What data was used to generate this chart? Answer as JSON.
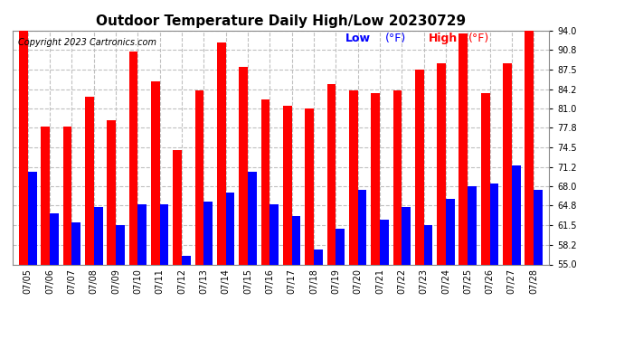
{
  "title": "Outdoor Temperature Daily High/Low 20230729",
  "copyright": "Copyright 2023 Cartronics.com",
  "legend_low": "Low",
  "legend_high": "High",
  "legend_unit": "(°F)",
  "ylim": [
    55.0,
    94.0
  ],
  "yticks": [
    55.0,
    58.2,
    61.5,
    64.8,
    68.0,
    71.2,
    74.5,
    77.8,
    81.0,
    84.2,
    87.5,
    90.8,
    94.0
  ],
  "dates": [
    "07/05",
    "07/06",
    "07/07",
    "07/08",
    "07/09",
    "07/10",
    "07/11",
    "07/12",
    "07/13",
    "07/14",
    "07/15",
    "07/16",
    "07/17",
    "07/18",
    "07/19",
    "07/20",
    "07/21",
    "07/22",
    "07/23",
    "07/24",
    "07/25",
    "07/26",
    "07/27",
    "07/28"
  ],
  "highs": [
    94.0,
    78.0,
    78.0,
    83.0,
    79.0,
    90.5,
    85.5,
    74.0,
    84.0,
    92.0,
    88.0,
    82.5,
    81.5,
    81.0,
    85.0,
    84.0,
    83.5,
    84.0,
    87.5,
    88.5,
    93.5,
    83.5,
    88.5,
    94.0
  ],
  "lows": [
    70.5,
    63.5,
    62.0,
    64.5,
    61.5,
    65.0,
    65.0,
    56.5,
    65.5,
    67.0,
    70.5,
    65.0,
    63.0,
    57.5,
    61.0,
    67.5,
    62.5,
    64.5,
    61.5,
    66.0,
    68.0,
    68.5,
    71.5,
    67.5
  ],
  "bar_color_high": "#ff0000",
  "bar_color_low": "#0000ff",
  "background_color": "#ffffff",
  "grid_color": "#c0c0c0",
  "title_fontsize": 11,
  "tick_fontsize": 7,
  "copyright_fontsize": 7,
  "legend_fontsize": 9
}
